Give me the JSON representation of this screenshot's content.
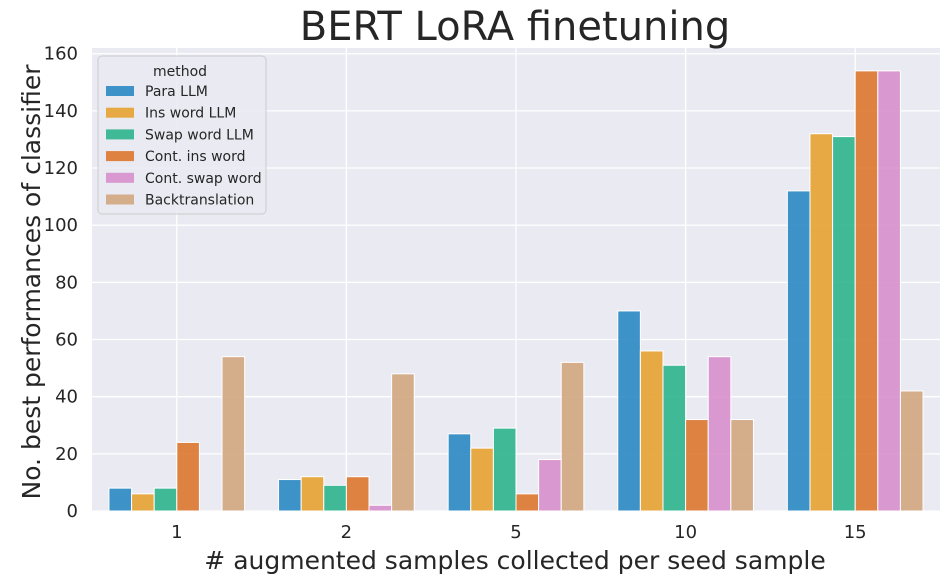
{
  "chart_data": {
    "type": "bar",
    "title": "BERT LoRA finetuning",
    "xlabel": "# augmented samples collected per seed sample",
    "ylabel": "No. best performances of classifier",
    "categories": [
      "1",
      "2",
      "5",
      "10",
      "15"
    ],
    "yticks": [
      "0",
      "20",
      "40",
      "60",
      "80",
      "100",
      "120",
      "140",
      "160"
    ],
    "ylim": [
      0,
      162
    ],
    "grid": true,
    "legend": {
      "title": "method",
      "position": "top-left"
    },
    "series": [
      {
        "name": "Para LLM",
        "color": "#2a88c3",
        "values": [
          8,
          11,
          27,
          70,
          112
        ]
      },
      {
        "name": "Ins word LLM",
        "color": "#e6a230",
        "values": [
          6,
          12,
          22,
          56,
          132
        ]
      },
      {
        "name": "Swap word LLM",
        "color": "#2eb48d",
        "values": [
          8,
          9,
          29,
          51,
          131
        ]
      },
      {
        "name": "Cont. ins word",
        "color": "#dd772f",
        "values": [
          24,
          12,
          6,
          32,
          154
        ]
      },
      {
        "name": "Cont. swap word",
        "color": "#d88fcc",
        "values": [
          0,
          2,
          18,
          54,
          154
        ]
      },
      {
        "name": "Backtranslation",
        "color": "#d2a67f",
        "values": [
          54,
          48,
          52,
          32,
          42
        ]
      }
    ]
  }
}
